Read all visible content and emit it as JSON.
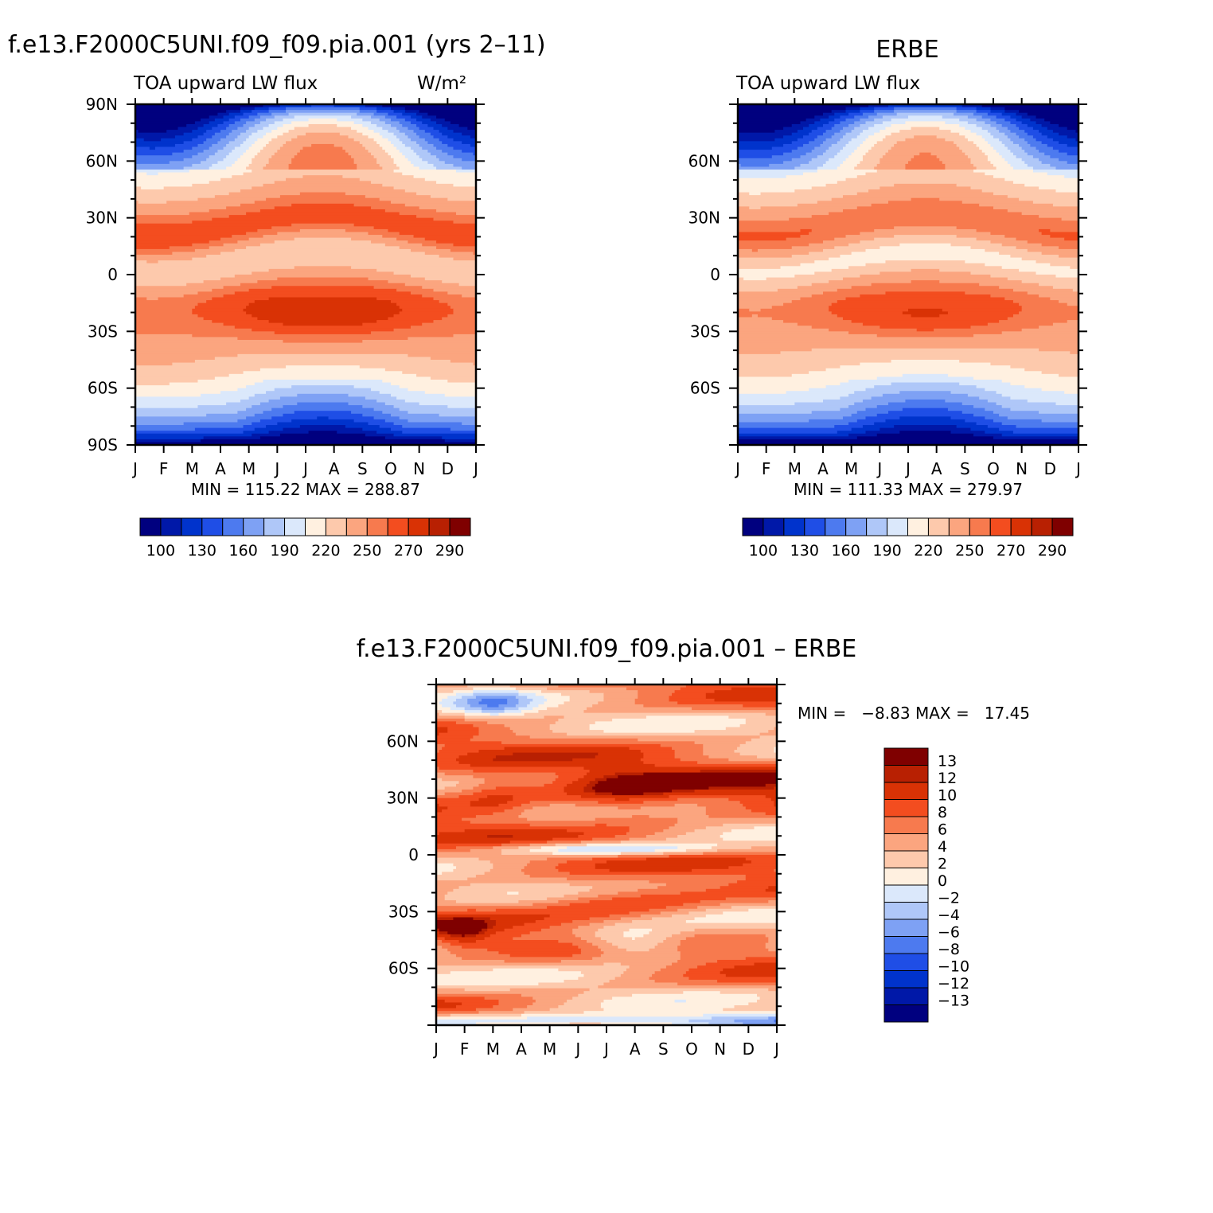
{
  "months": [
    "J",
    "F",
    "M",
    "A",
    "M",
    "J",
    "J",
    "A",
    "S",
    "O",
    "N",
    "D",
    "J"
  ],
  "main_colorbar": {
    "colors": [
      "#00007f",
      "#0018a8",
      "#0033cc",
      "#1f4ee6",
      "#4d7aef",
      "#7ea1f4",
      "#afc7f8",
      "#dbe8fb",
      "#fff0e0",
      "#fdc9ac",
      "#fba57f",
      "#f77a4e",
      "#f34d1f",
      "#d93205",
      "#b82002",
      "#7f0000"
    ],
    "labels": [
      "100",
      "130",
      "160",
      "190",
      "220",
      "250",
      "270",
      "290"
    ]
  },
  "diff_colorbar": {
    "colors": [
      "#7f0000",
      "#b82002",
      "#d93205",
      "#f34d1f",
      "#f77a4e",
      "#fba57f",
      "#fdc9ac",
      "#fff0e0",
      "#dbe8fb",
      "#afc7f8",
      "#7ea1f4",
      "#4d7aef",
      "#1f4ee6",
      "#0033cc",
      "#0018a8",
      "#00007f"
    ],
    "labels": [
      "13",
      "12",
      "10",
      "8",
      "6",
      "4",
      "2",
      "0",
      "−2",
      "−4",
      "−6",
      "−8",
      "−10",
      "−12",
      "−13"
    ]
  },
  "chart_data": [
    {
      "type": "heatmap",
      "title": "f.e13.F2000C5UNI.f09_f09.pia.001 (yrs 2–11)",
      "subtitle_left": "TOA upward LW flux",
      "units": "W/m²",
      "x": [
        "J",
        "F",
        "M",
        "A",
        "M",
        "J",
        "J",
        "A",
        "S",
        "O",
        "N",
        "D",
        "J"
      ],
      "yticks": [
        "90N",
        "60N",
        "30N",
        "0",
        "30S",
        "60S",
        "90S"
      ],
      "ylim": [
        -90,
        90
      ],
      "stats": "MIN = 115.22 MAX = 288.87",
      "min": 115.22,
      "max": 288.87
    },
    {
      "type": "heatmap",
      "title": "ERBE",
      "subtitle_left": "TOA upward LW flux",
      "x": [
        "J",
        "F",
        "M",
        "A",
        "M",
        "J",
        "J",
        "A",
        "S",
        "O",
        "N",
        "D",
        "J"
      ],
      "yticks": [
        "60N",
        "30N",
        "0",
        "30S",
        "60S"
      ],
      "ylim": [
        -90,
        90
      ],
      "stats": "MIN = 111.33 MAX = 279.97",
      "min": 111.33,
      "max": 279.97
    },
    {
      "type": "heatmap",
      "title": "f.e13.F2000C5UNI.f09_f09.pia.001 – ERBE",
      "x": [
        "J",
        "F",
        "M",
        "A",
        "M",
        "J",
        "J",
        "A",
        "S",
        "O",
        "N",
        "D",
        "J"
      ],
      "yticks": [
        "60N",
        "30N",
        "0",
        "30S",
        "60S"
      ],
      "ylim": [
        -90,
        90
      ],
      "stats": "MIN =   −8.83 MAX =   17.45",
      "min": -8.83,
      "max": 17.45
    }
  ]
}
